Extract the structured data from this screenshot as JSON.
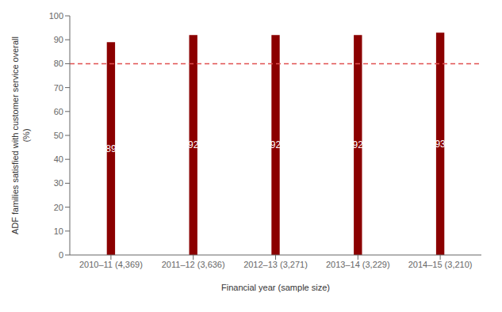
{
  "chart_data": {
    "type": "bar",
    "categories": [
      "2010–11 (4,369)",
      "2011–12 (3,636)",
      "2012–13 (3,271)",
      "2013–14 (3,229)",
      "2014–15 (3,210)"
    ],
    "values": [
      89,
      92,
      92,
      92,
      93
    ],
    "color": "#8B0000",
    "data_labels": true,
    "xlabel": "Financial year (sample size)",
    "ylabel": "ADF families satisfied with customer service overall\n(%)",
    "ylim": [
      0,
      100
    ],
    "yticks": [
      0,
      10,
      20,
      30,
      40,
      50,
      60,
      70,
      80,
      90,
      100
    ],
    "grid": false,
    "hline": {
      "y": 80,
      "color": "#e05050",
      "line_style": "dashed"
    }
  }
}
